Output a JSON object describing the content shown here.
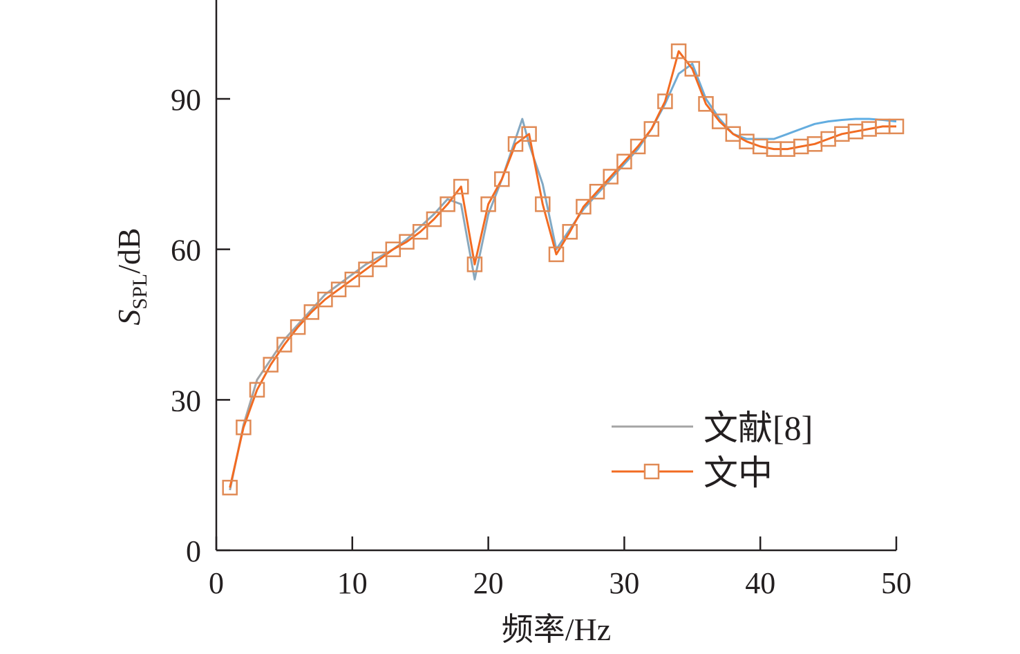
{
  "chart_data": {
    "type": "line",
    "xlabel": "频率/Hz",
    "ylabel_main": "S",
    "ylabel_sub": "SPL",
    "ylabel_unit": "/dB",
    "xlim": [
      0,
      50
    ],
    "ylim": [
      0,
      110
    ],
    "xticks": [
      0,
      10,
      20,
      30,
      40,
      50
    ],
    "yticks": [
      0,
      30,
      60,
      90
    ],
    "grid": false,
    "legend_position": "bottom-right",
    "series": [
      {
        "name": "文献[8]",
        "color": "#a4a4a4",
        "gradient_to": "#5aaee8",
        "marker": "none",
        "x": [
          1,
          2,
          3,
          4,
          5,
          6,
          7,
          8,
          9,
          10,
          11,
          12,
          13,
          14,
          15,
          16,
          17,
          18,
          19,
          20,
          21,
          22,
          22.5,
          23,
          24,
          25,
          26,
          27,
          28,
          29,
          30,
          31,
          32,
          33,
          34,
          35,
          36,
          37,
          38,
          39,
          40,
          41,
          42,
          43,
          44,
          45,
          46,
          47,
          48,
          49,
          50
        ],
        "values": [
          12,
          25,
          34,
          38,
          42,
          45,
          48,
          51,
          53,
          55,
          57,
          58.5,
          60,
          62,
          64.5,
          67,
          70,
          69,
          54,
          67,
          74,
          82,
          86,
          81,
          73,
          60,
          64,
          68,
          71,
          74,
          77,
          80,
          84,
          89,
          95,
          97,
          90,
          86,
          83,
          82,
          82,
          82,
          83,
          84,
          85,
          85.5,
          85.8,
          86,
          86,
          85.8,
          85.5
        ]
      },
      {
        "name": "文中",
        "color": "#f26b22",
        "marker_color": "#e08a55",
        "marker": "square",
        "x": [
          1,
          2,
          3,
          4,
          5,
          6,
          7,
          8,
          9,
          10,
          11,
          12,
          13,
          14,
          15,
          16,
          17,
          18,
          19,
          20,
          21,
          22,
          23,
          24,
          25,
          26,
          27,
          28,
          29,
          30,
          31,
          32,
          33,
          34,
          35,
          36,
          37,
          38,
          39,
          40,
          41,
          42,
          43,
          44,
          45,
          46,
          47,
          48,
          49,
          50
        ],
        "values": [
          12.5,
          24.5,
          32,
          37,
          41,
          44.5,
          47.5,
          50,
          52,
          54,
          56,
          58,
          60,
          61.5,
          63.5,
          66,
          69,
          72.5,
          57,
          69,
          74,
          81,
          83,
          69,
          59,
          63.5,
          68.5,
          71.5,
          74.5,
          77.5,
          80.5,
          84,
          89.5,
          99.5,
          96,
          89,
          85.5,
          83,
          81.5,
          80.5,
          80,
          80,
          80.5,
          81,
          82,
          83,
          83.5,
          84,
          84.5,
          84.5
        ]
      }
    ]
  }
}
